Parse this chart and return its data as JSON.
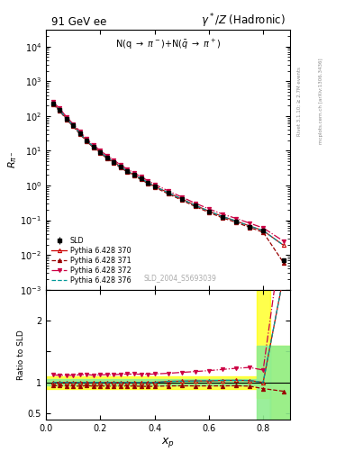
{
  "title_left": "91 GeV ee",
  "title_right": "γ*/Z (Hadronic)",
  "annotation": "N(q → π⁻)+N(̅q → π⁻)",
  "watermark": "SLD_2004_S5693039",
  "right_label_top": "Rivet 3.1.10; ≥ 2.7M events",
  "right_label_bot": "mcplots.cern.ch [arXiv:1306.3436]",
  "ylabel_ratio": "Ratio to SLD",
  "xlabel": "x_p",
  "sld_x": [
    0.025,
    0.05,
    0.075,
    0.1,
    0.125,
    0.15,
    0.175,
    0.2,
    0.225,
    0.25,
    0.275,
    0.3,
    0.325,
    0.35,
    0.375,
    0.4,
    0.45,
    0.5,
    0.55,
    0.6,
    0.65,
    0.7,
    0.75,
    0.8,
    0.875
  ],
  "sld_y": [
    230,
    148,
    85,
    53,
    32,
    19.5,
    13.0,
    9.0,
    6.4,
    4.8,
    3.4,
    2.6,
    2.0,
    1.58,
    1.22,
    0.95,
    0.61,
    0.4,
    0.262,
    0.178,
    0.124,
    0.092,
    0.066,
    0.05,
    0.007
  ],
  "sld_yerr": [
    12,
    9,
    5,
    3,
    2,
    1.3,
    0.9,
    0.55,
    0.42,
    0.31,
    0.22,
    0.17,
    0.13,
    0.1,
    0.08,
    0.06,
    0.04,
    0.026,
    0.018,
    0.013,
    0.009,
    0.007,
    0.005,
    0.004,
    0.001
  ],
  "py370_x": [
    0.025,
    0.05,
    0.075,
    0.1,
    0.125,
    0.15,
    0.175,
    0.2,
    0.225,
    0.25,
    0.275,
    0.3,
    0.325,
    0.35,
    0.375,
    0.4,
    0.45,
    0.5,
    0.55,
    0.6,
    0.65,
    0.7,
    0.75,
    0.8,
    0.875
  ],
  "py370_y": [
    230,
    148,
    85,
    53,
    32,
    19.5,
    13.0,
    9.0,
    6.4,
    4.8,
    3.4,
    2.6,
    2.0,
    1.58,
    1.22,
    0.95,
    0.62,
    0.408,
    0.268,
    0.182,
    0.128,
    0.095,
    0.068,
    0.05,
    0.019
  ],
  "py371_x": [
    0.025,
    0.05,
    0.075,
    0.1,
    0.125,
    0.15,
    0.175,
    0.2,
    0.225,
    0.25,
    0.275,
    0.3,
    0.325,
    0.35,
    0.375,
    0.4,
    0.45,
    0.5,
    0.55,
    0.6,
    0.65,
    0.7,
    0.75,
    0.8,
    0.875
  ],
  "py371_y": [
    218,
    140,
    80,
    50,
    30,
    18.5,
    12.2,
    8.5,
    6.0,
    4.5,
    3.2,
    2.45,
    1.88,
    1.48,
    1.14,
    0.89,
    0.575,
    0.378,
    0.247,
    0.168,
    0.117,
    0.087,
    0.062,
    0.045,
    0.006
  ],
  "py372_x": [
    0.025,
    0.05,
    0.075,
    0.1,
    0.125,
    0.15,
    0.175,
    0.2,
    0.225,
    0.25,
    0.275,
    0.3,
    0.325,
    0.35,
    0.375,
    0.4,
    0.45,
    0.5,
    0.55,
    0.6,
    0.65,
    0.7,
    0.75,
    0.8,
    0.875
  ],
  "py372_y": [
    258,
    165,
    95,
    59,
    36,
    22.0,
    14.5,
    10.1,
    7.2,
    5.4,
    3.85,
    2.95,
    2.27,
    1.79,
    1.38,
    1.08,
    0.7,
    0.465,
    0.308,
    0.212,
    0.15,
    0.113,
    0.082,
    0.06,
    0.025
  ],
  "py376_x": [
    0.025,
    0.05,
    0.075,
    0.1,
    0.125,
    0.15,
    0.175,
    0.2,
    0.225,
    0.25,
    0.275,
    0.3,
    0.325,
    0.35,
    0.375,
    0.4,
    0.45,
    0.5,
    0.55,
    0.6,
    0.65,
    0.7,
    0.75,
    0.8,
    0.875
  ],
  "py376_y": [
    230,
    148,
    85,
    53,
    32,
    19.5,
    13.0,
    9.0,
    6.4,
    4.8,
    3.4,
    2.6,
    2.0,
    1.58,
    1.22,
    0.95,
    0.62,
    0.408,
    0.268,
    0.183,
    0.128,
    0.095,
    0.068,
    0.05,
    0.019
  ],
  "band_steps": [
    [
      0.0,
      0.775,
      0.9,
      0.95,
      1.05,
      1.1
    ],
    [
      0.775,
      0.825,
      0.75,
      0.4,
      1.6,
      2.5
    ],
    [
      0.825,
      0.9,
      0.4,
      0.4,
      1.6,
      1.6
    ]
  ],
  "color_370": "#cc0000",
  "color_371": "#990000",
  "color_372": "#cc0044",
  "color_376": "#009999",
  "ylim_main": [
    0.001,
    30000
  ],
  "ylim_ratio": [
    0.4,
    2.5
  ],
  "xlim": [
    0.0,
    0.9
  ]
}
